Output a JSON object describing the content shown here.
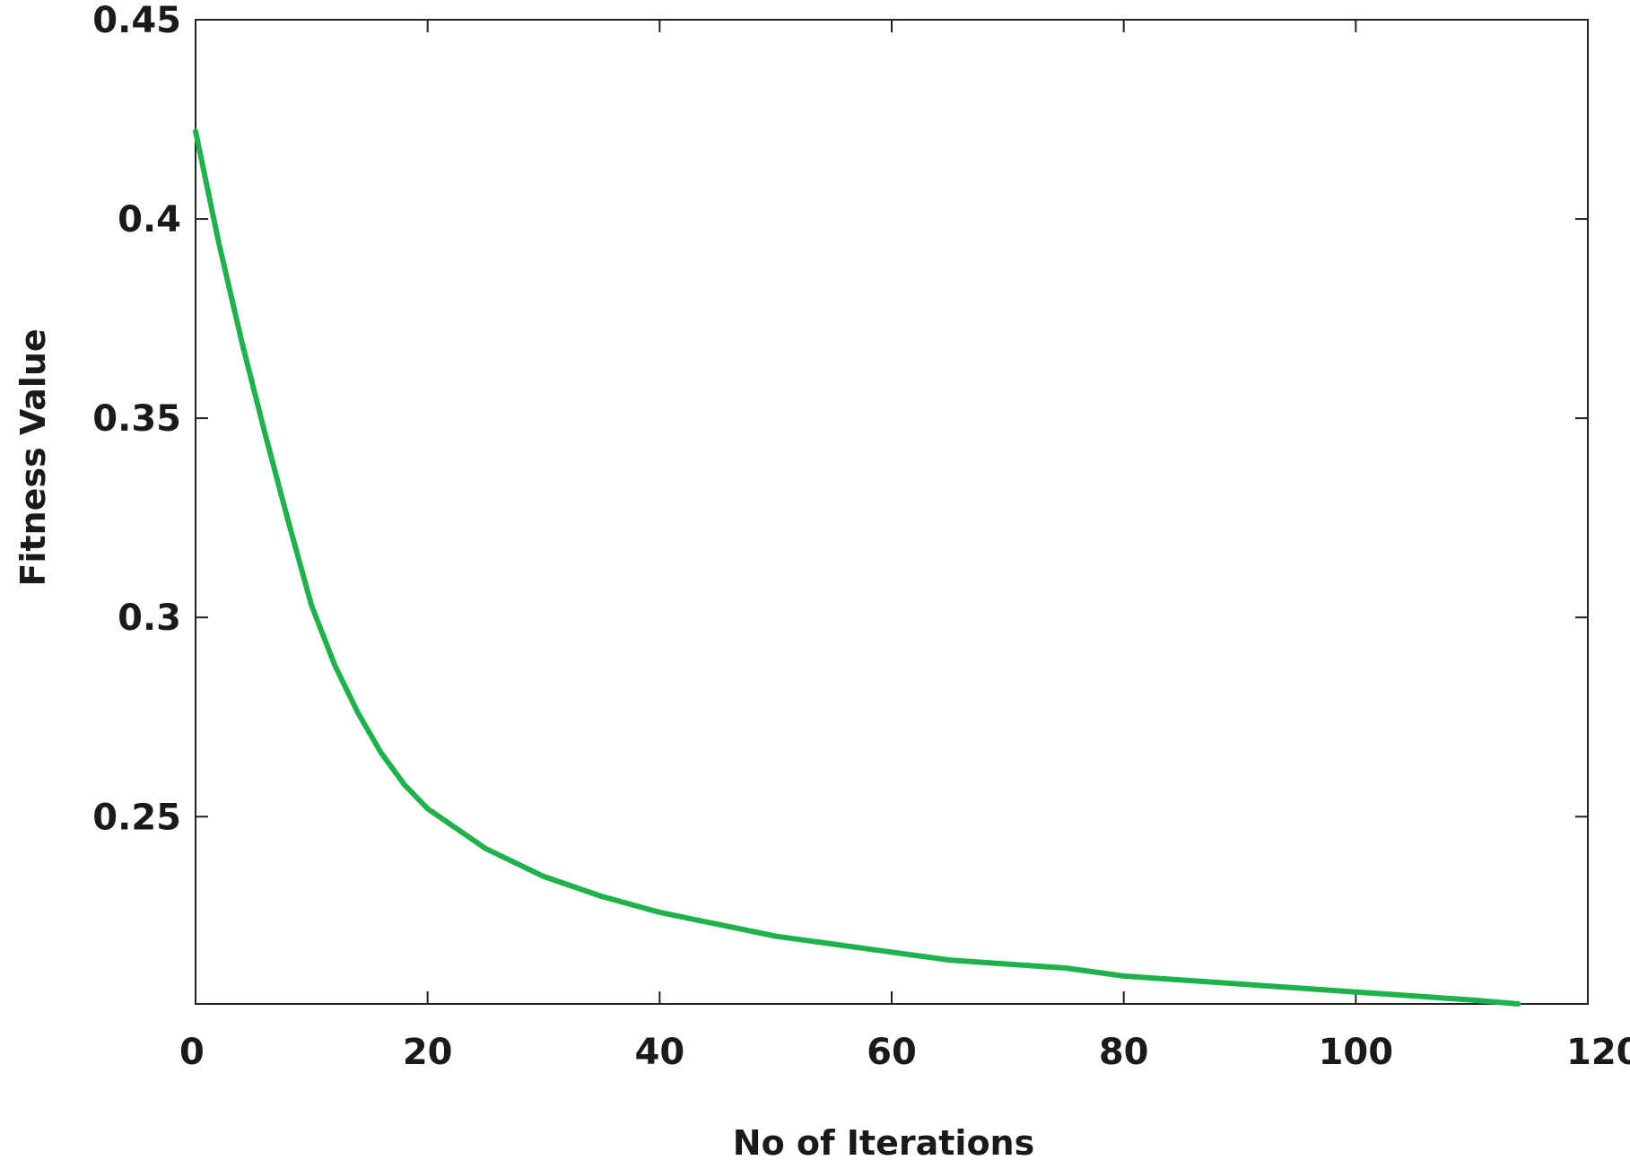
{
  "chart_data": {
    "type": "line",
    "title": "",
    "xlabel": "No of Iterations",
    "ylabel": "Fitness Value",
    "xlim": [
      0,
      120
    ],
    "ylim": [
      0.203,
      0.45
    ],
    "x_ticks": [
      0,
      20,
      40,
      60,
      80,
      100,
      120
    ],
    "x_tick_labels": [
      "0",
      "20",
      "40",
      "60",
      "80",
      "100",
      "120"
    ],
    "y_ticks": [
      0.25,
      0.3,
      0.35,
      0.4,
      0.45
    ],
    "y_tick_labels": [
      "0.25",
      "0.3",
      "0.35",
      "0.4",
      "0.45"
    ],
    "grid": false,
    "legend": "none",
    "series": [
      {
        "color": "#1db34a",
        "x": [
          0,
          2,
          4,
          6,
          8,
          10,
          12,
          14,
          16,
          18,
          20,
          25,
          30,
          35,
          40,
          45,
          50,
          55,
          60,
          65,
          70,
          75,
          80,
          85,
          90,
          95,
          100,
          105,
          110,
          114
        ],
        "y": [
          0.422,
          0.394,
          0.369,
          0.346,
          0.324,
          0.303,
          0.288,
          0.276,
          0.266,
          0.258,
          0.252,
          0.242,
          0.235,
          0.23,
          0.226,
          0.223,
          0.22,
          0.218,
          0.216,
          0.214,
          0.213,
          0.212,
          0.21,
          0.209,
          0.208,
          0.207,
          0.206,
          0.205,
          0.204,
          0.203
        ]
      }
    ]
  }
}
